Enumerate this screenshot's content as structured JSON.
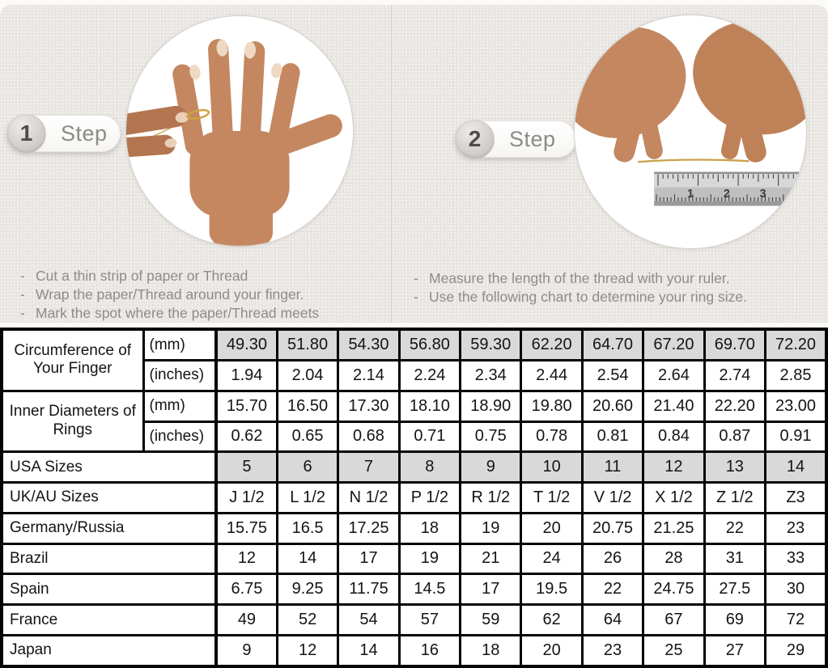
{
  "ui": {
    "bullet": "-"
  },
  "colors": {
    "section_background": "#eae7e3",
    "table_highlight": "#d9d9d9",
    "table_border": "#050505",
    "instruction_text": "#8f8c87",
    "gold_thread": "#c9a24b"
  },
  "illustrations": {
    "step1_photo": "hand-with-thread-around-finger",
    "step2_photo": "hands-measuring-thread-with-ruler"
  },
  "steps": [
    {
      "number": "1",
      "label": "Step",
      "instructions": [
        "Cut a thin strip of paper or Thread",
        "Wrap the paper/Thread around your finger.",
        "Mark the spot where the paper/Thread meets"
      ]
    },
    {
      "number": "2",
      "label": "Step",
      "instructions": [
        "Measure the length of the thread with your ruler.",
        "Use the following chart to determine your ring size."
      ],
      "ruler_numbers": [
        "1",
        "2",
        "3"
      ]
    }
  ],
  "size_chart": {
    "groups": [
      {
        "label": "Circumference of Your Finger",
        "rows": [
          {
            "unit": "(mm)",
            "highlight": true,
            "values": [
              "49.30",
              "51.80",
              "54.30",
              "56.80",
              "59.30",
              "62.20",
              "64.70",
              "67.20",
              "69.70",
              "72.20"
            ]
          },
          {
            "unit": "(inches)",
            "highlight": false,
            "values": [
              "1.94",
              "2.04",
              "2.14",
              "2.24",
              "2.34",
              "2.44",
              "2.54",
              "2.64",
              "2.74",
              "2.85"
            ]
          }
        ]
      },
      {
        "label": "Inner Diameters of Rings",
        "rows": [
          {
            "unit": "(mm)",
            "highlight": false,
            "values": [
              "15.70",
              "16.50",
              "17.30",
              "18.10",
              "18.90",
              "19.80",
              "20.60",
              "21.40",
              "22.20",
              "23.00"
            ]
          },
          {
            "unit": "(inches)",
            "highlight": false,
            "values": [
              "0.62",
              "0.65",
              "0.68",
              "0.71",
              "0.75",
              "0.78",
              "0.81",
              "0.84",
              "0.87",
              "0.91"
            ]
          }
        ]
      }
    ],
    "size_rows": [
      {
        "label": "USA Sizes",
        "highlight": true,
        "values": [
          "5",
          "6",
          "7",
          "8",
          "9",
          "10",
          "11",
          "12",
          "13",
          "14"
        ]
      },
      {
        "label": "UK/AU Sizes",
        "highlight": false,
        "values": [
          "J 1/2",
          "L 1/2",
          "N 1/2",
          "P 1/2",
          "R 1/2",
          "T 1/2",
          "V 1/2",
          "X 1/2",
          "Z 1/2",
          "Z3"
        ]
      },
      {
        "label": "Germany/Russia",
        "highlight": false,
        "values": [
          "15.75",
          "16.5",
          "17.25",
          "18",
          "19",
          "20",
          "20.75",
          "21.25",
          "22",
          "23"
        ]
      },
      {
        "label": "Brazil",
        "highlight": false,
        "values": [
          "12",
          "14",
          "17",
          "19",
          "21",
          "24",
          "26",
          "28",
          "31",
          "33"
        ]
      },
      {
        "label": "Spain",
        "highlight": false,
        "values": [
          "6.75",
          "9.25",
          "11.75",
          "14.5",
          "17",
          "19.5",
          "22",
          "24.75",
          "27.5",
          "30"
        ]
      },
      {
        "label": "France",
        "highlight": false,
        "values": [
          "49",
          "52",
          "54",
          "57",
          "59",
          "62",
          "64",
          "67",
          "69",
          "72"
        ]
      },
      {
        "label": "Japan",
        "highlight": false,
        "values": [
          "9",
          "12",
          "14",
          "16",
          "18",
          "20",
          "23",
          "25",
          "27",
          "29"
        ]
      }
    ]
  }
}
